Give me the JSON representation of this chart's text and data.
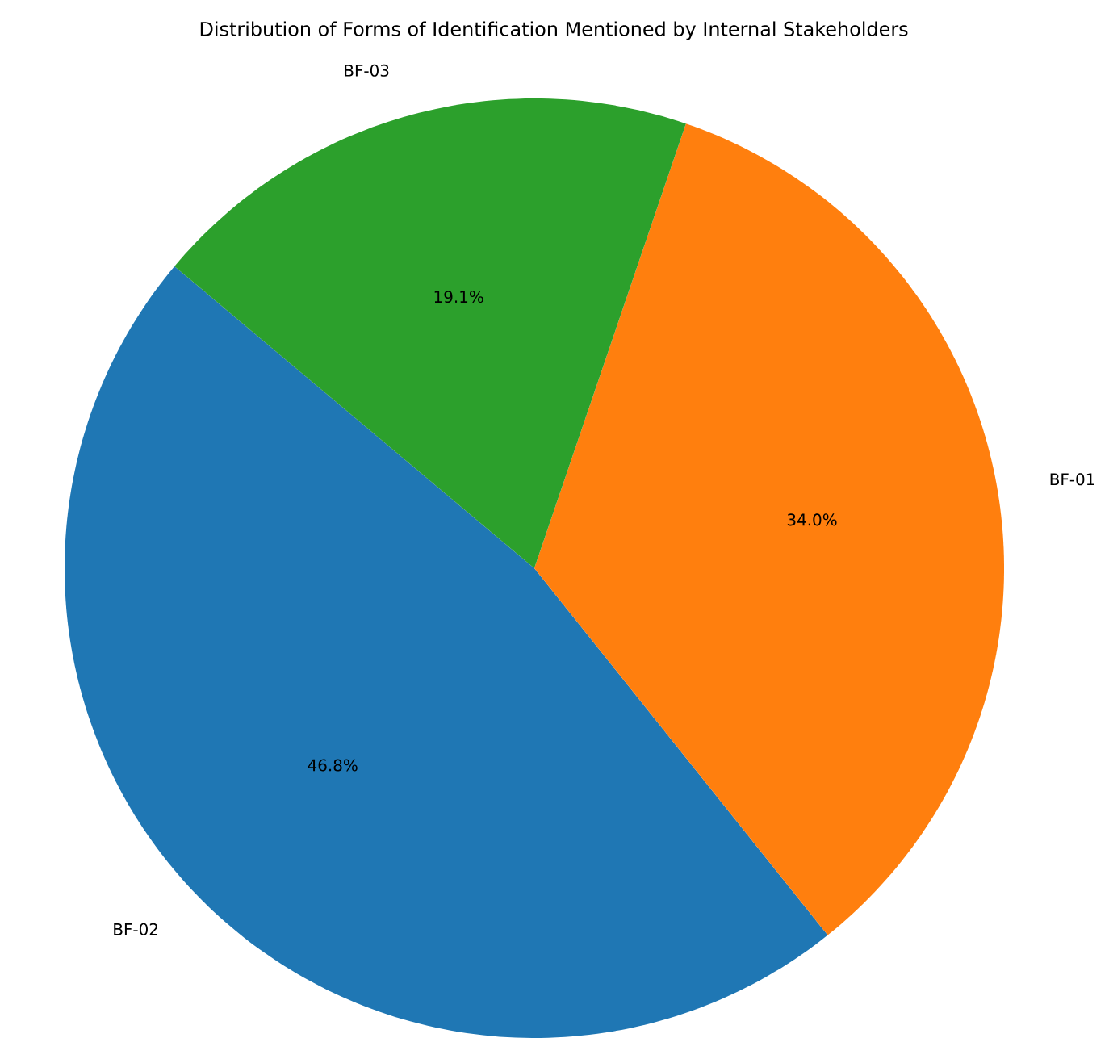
{
  "chart_data": {
    "type": "pie",
    "title": "Distribution of Forms of Identification Mentioned by Internal Stakeholders",
    "categories": [
      "BF-02",
      "BF-01",
      "BF-03"
    ],
    "values": [
      46.8,
      34.0,
      19.1
    ],
    "colors": [
      "#1f77b4",
      "#ff7f0e",
      "#2ca02c"
    ],
    "value_labels": [
      "46.8%",
      "34.0%",
      "19.1%"
    ]
  }
}
